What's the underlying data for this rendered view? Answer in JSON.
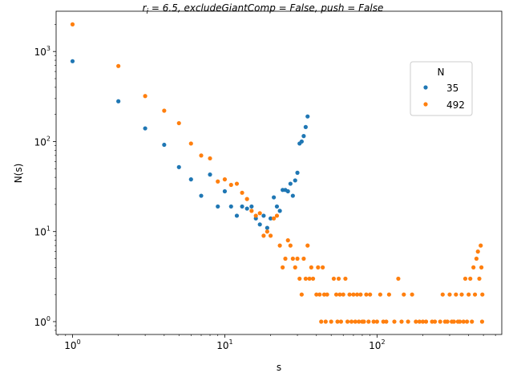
{
  "chart_data": {
    "type": "scatter",
    "title": "r_i = 6.5, excludeGiantComp = False, push = False",
    "title_parts": {
      "var": "r",
      "sub": "i",
      "rest": " = 6.5, excludeGiantComp = False, push = False"
    },
    "xlabel": "s",
    "ylabel": "N(s)",
    "x_scale": "log",
    "y_scale": "log",
    "xlim": [
      0.78,
      660
    ],
    "ylim": [
      0.72,
      2800
    ],
    "x_ticks": [
      {
        "value": 1,
        "base": "10",
        "exp": "0"
      },
      {
        "value": 10,
        "base": "10",
        "exp": "1"
      },
      {
        "value": 100,
        "base": "10",
        "exp": "2"
      }
    ],
    "y_ticks": [
      {
        "value": 1,
        "base": "10",
        "exp": "0"
      },
      {
        "value": 10,
        "base": "10",
        "exp": "1"
      },
      {
        "value": 100,
        "base": "10",
        "exp": "2"
      },
      {
        "value": 1000,
        "base": "10",
        "exp": "3"
      }
    ],
    "grid": false,
    "legend": {
      "title": "N",
      "placement": "upper-right"
    },
    "series": [
      {
        "name": "35",
        "color": "#1f77b4",
        "points": [
          [
            1,
            780
          ],
          [
            2,
            280
          ],
          [
            3,
            140
          ],
          [
            4,
            92
          ],
          [
            5,
            52
          ],
          [
            6,
            38
          ],
          [
            7,
            25
          ],
          [
            8,
            43
          ],
          [
            9,
            19
          ],
          [
            10,
            28
          ],
          [
            11,
            19
          ],
          [
            12,
            15
          ],
          [
            13,
            19
          ],
          [
            14,
            18
          ],
          [
            15,
            19
          ],
          [
            16,
            14
          ],
          [
            17,
            12
          ],
          [
            18,
            15
          ],
          [
            19,
            11
          ],
          [
            20,
            14
          ],
          [
            21,
            24
          ],
          [
            22,
            19
          ],
          [
            23,
            17
          ],
          [
            24,
            29
          ],
          [
            25,
            29
          ],
          [
            26,
            28
          ],
          [
            27,
            34
          ],
          [
            28,
            25
          ],
          [
            29,
            37
          ],
          [
            30,
            45
          ],
          [
            31,
            95
          ],
          [
            32,
            100
          ],
          [
            33,
            115
          ],
          [
            34,
            145
          ],
          [
            35,
            190
          ]
        ]
      },
      {
        "name": "492",
        "color": "#ff7f0e",
        "points": [
          [
            1,
            2000
          ],
          [
            2,
            690
          ],
          [
            3,
            320
          ],
          [
            4,
            220
          ],
          [
            5,
            160
          ],
          [
            6,
            95
          ],
          [
            7,
            70
          ],
          [
            8,
            65
          ],
          [
            9,
            36
          ],
          [
            10,
            38
          ],
          [
            11,
            33
          ],
          [
            12,
            34
          ],
          [
            13,
            27
          ],
          [
            14,
            23
          ],
          [
            15,
            17
          ],
          [
            16,
            15
          ],
          [
            17,
            16
          ],
          [
            18,
            9
          ],
          [
            19,
            10
          ],
          [
            20,
            9
          ],
          [
            21,
            14
          ],
          [
            22,
            15
          ],
          [
            23,
            7
          ],
          [
            24,
            4
          ],
          [
            25,
            5
          ],
          [
            26,
            8
          ],
          [
            27,
            7
          ],
          [
            28,
            5
          ],
          [
            29,
            4
          ],
          [
            30,
            5
          ],
          [
            31,
            3
          ],
          [
            32,
            2
          ],
          [
            33,
            5
          ],
          [
            34,
            3
          ],
          [
            35,
            7
          ],
          [
            36,
            3
          ],
          [
            37,
            4
          ],
          [
            38,
            3
          ],
          [
            40,
            2
          ],
          [
            41,
            4
          ],
          [
            42,
            2
          ],
          [
            43,
            1
          ],
          [
            44,
            4
          ],
          [
            45,
            2
          ],
          [
            46,
            1
          ],
          [
            47,
            2
          ],
          [
            50,
            1
          ],
          [
            52,
            3
          ],
          [
            54,
            2
          ],
          [
            55,
            1
          ],
          [
            56,
            3
          ],
          [
            57,
            2
          ],
          [
            58,
            1
          ],
          [
            60,
            2
          ],
          [
            62,
            3
          ],
          [
            64,
            1
          ],
          [
            66,
            2
          ],
          [
            68,
            1
          ],
          [
            70,
            2
          ],
          [
            72,
            1
          ],
          [
            74,
            2
          ],
          [
            76,
            1
          ],
          [
            78,
            2
          ],
          [
            80,
            1
          ],
          [
            82,
            1
          ],
          [
            85,
            2
          ],
          [
            88,
            1
          ],
          [
            90,
            2
          ],
          [
            95,
            1
          ],
          [
            100,
            1
          ],
          [
            105,
            2
          ],
          [
            110,
            1
          ],
          [
            115,
            1
          ],
          [
            120,
            2
          ],
          [
            130,
            1
          ],
          [
            138,
            3
          ],
          [
            145,
            1
          ],
          [
            150,
            2
          ],
          [
            160,
            1
          ],
          [
            170,
            2
          ],
          [
            180,
            1
          ],
          [
            190,
            1
          ],
          [
            200,
            1
          ],
          [
            210,
            1
          ],
          [
            230,
            1
          ],
          [
            240,
            1
          ],
          [
            260,
            1
          ],
          [
            270,
            2
          ],
          [
            280,
            1
          ],
          [
            290,
            1
          ],
          [
            300,
            2
          ],
          [
            310,
            1
          ],
          [
            320,
            1
          ],
          [
            330,
            2
          ],
          [
            340,
            1
          ],
          [
            350,
            1
          ],
          [
            360,
            2
          ],
          [
            370,
            1
          ],
          [
            380,
            3
          ],
          [
            390,
            1
          ],
          [
            400,
            2
          ],
          [
            410,
            3
          ],
          [
            420,
            1
          ],
          [
            430,
            4
          ],
          [
            440,
            2
          ],
          [
            450,
            5
          ],
          [
            460,
            6
          ],
          [
            470,
            3
          ],
          [
            480,
            7
          ],
          [
            485,
            4
          ],
          [
            490,
            1
          ],
          [
            492,
            2
          ]
        ]
      }
    ]
  }
}
